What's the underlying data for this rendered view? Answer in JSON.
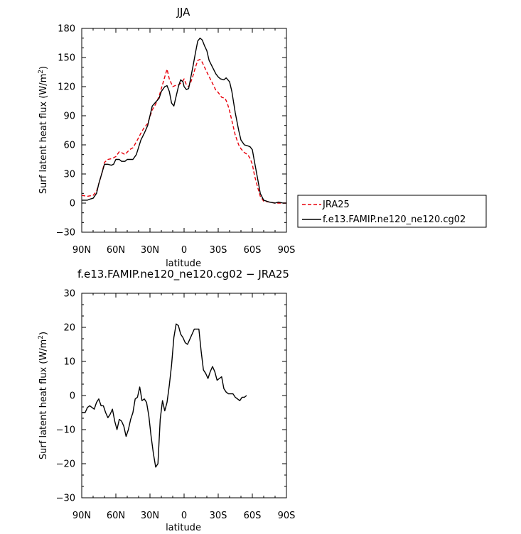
{
  "chart_data": [
    {
      "type": "line",
      "title": "JJA",
      "xlabel": "latitude",
      "ylabel": "Surf latent heat flux (W/m²)",
      "ylabel_text": "Surf latent heat flux (W/m",
      "ylabel_sup": "2",
      "ylabel_close": ")",
      "xlim": [
        90,
        -90
      ],
      "ylim": [
        -30,
        180
      ],
      "xticks": [
        90,
        60,
        30,
        0,
        -30,
        -60,
        -90
      ],
      "xtick_labels": [
        "90N",
        "60N",
        "30N",
        "0",
        "30S",
        "60S",
        "90S"
      ],
      "yticks": [
        -30,
        0,
        30,
        60,
        90,
        120,
        150,
        180
      ],
      "ytick_labels": [
        "−30",
        "0",
        "30",
        "60",
        "90",
        "120",
        "150",
        "180"
      ],
      "grid": false,
      "legend_position": "right",
      "series": [
        {
          "name": "JRA25",
          "style": "dashed",
          "color": "#e8000b",
          "points": [
            [
              90,
              8
            ],
            [
              85,
              7
            ],
            [
              80,
              8
            ],
            [
              77,
              12
            ],
            [
              75,
              20
            ],
            [
              72,
              32
            ],
            [
              70,
              42
            ],
            [
              67,
              45
            ],
            [
              63,
              46
            ],
            [
              60,
              48
            ],
            [
              57,
              53
            ],
            [
              55,
              52
            ],
            [
              52,
              50
            ],
            [
              48,
              55
            ],
            [
              45,
              57
            ],
            [
              42,
              63
            ],
            [
              38,
              72
            ],
            [
              35,
              78
            ],
            [
              32,
              82
            ],
            [
              28,
              96
            ],
            [
              25,
              102
            ],
            [
              22,
              110
            ],
            [
              20,
              118
            ],
            [
              17,
              130
            ],
            [
              15,
              138
            ],
            [
              13,
              128
            ],
            [
              10,
              120
            ],
            [
              8,
              121
            ],
            [
              5,
              122
            ],
            [
              2,
              124
            ],
            [
              0,
              128
            ],
            [
              -2,
              122
            ],
            [
              -4,
              120
            ],
            [
              -6,
              125
            ],
            [
              -8,
              132
            ],
            [
              -10,
              140
            ],
            [
              -12,
              147
            ],
            [
              -14,
              148
            ],
            [
              -16,
              145
            ],
            [
              -18,
              140
            ],
            [
              -20,
              135
            ],
            [
              -23,
              128
            ],
            [
              -26,
              121
            ],
            [
              -28,
              116
            ],
            [
              -30,
              114
            ],
            [
              -33,
              109
            ],
            [
              -36,
              108
            ],
            [
              -38,
              103
            ],
            [
              -40,
              95
            ],
            [
              -42,
              85
            ],
            [
              -45,
              70
            ],
            [
              -48,
              60
            ],
            [
              -50,
              56
            ],
            [
              -53,
              52
            ],
            [
              -56,
              50
            ],
            [
              -58,
              46
            ],
            [
              -60,
              40
            ],
            [
              -62,
              28
            ],
            [
              -65,
              15
            ],
            [
              -67,
              7
            ],
            [
              -70,
              2
            ],
            [
              -75,
              1
            ],
            [
              -80,
              0
            ],
            [
              -85,
              0
            ],
            [
              -90,
              0
            ]
          ]
        },
        {
          "name": "f.e13.FAMIP.ne120_ne120.cg02",
          "style": "solid",
          "color": "#000000",
          "points": [
            [
              90,
              3
            ],
            [
              85,
              3
            ],
            [
              83,
              4
            ],
            [
              80,
              5
            ],
            [
              77,
              10
            ],
            [
              75,
              20
            ],
            [
              72,
              32
            ],
            [
              70,
              40
            ],
            [
              67,
              40
            ],
            [
              64,
              39
            ],
            [
              62,
              40
            ],
            [
              60,
              45
            ],
            [
              57,
              45
            ],
            [
              55,
              43
            ],
            [
              52,
              43
            ],
            [
              50,
              45
            ],
            [
              48,
              45
            ],
            [
              45,
              45
            ],
            [
              42,
              50
            ],
            [
              38,
              65
            ],
            [
              35,
              72
            ],
            [
              32,
              80
            ],
            [
              28,
              100
            ],
            [
              25,
              104
            ],
            [
              22,
              108
            ],
            [
              20,
              115
            ],
            [
              17,
              120
            ],
            [
              15,
              121
            ],
            [
              13,
              115
            ],
            [
              11,
              103
            ],
            [
              9,
              100
            ],
            [
              7,
              110
            ],
            [
              5,
              120
            ],
            [
              3,
              127
            ],
            [
              1,
              125
            ],
            [
              0,
              120
            ],
            [
              -2,
              117
            ],
            [
              -4,
              118
            ],
            [
              -6,
              130
            ],
            [
              -8,
              142
            ],
            [
              -10,
              155
            ],
            [
              -12,
              167
            ],
            [
              -14,
              170
            ],
            [
              -16,
              168
            ],
            [
              -18,
              162
            ],
            [
              -20,
              157
            ],
            [
              -22,
              147
            ],
            [
              -25,
              140
            ],
            [
              -28,
              133
            ],
            [
              -30,
              130
            ],
            [
              -32,
              128
            ],
            [
              -35,
              127
            ],
            [
              -37,
              129
            ],
            [
              -40,
              125
            ],
            [
              -42,
              115
            ],
            [
              -45,
              93
            ],
            [
              -48,
              75
            ],
            [
              -50,
              65
            ],
            [
              -53,
              60
            ],
            [
              -56,
              59
            ],
            [
              -58,
              58
            ],
            [
              -60,
              55
            ],
            [
              -62,
              42
            ],
            [
              -65,
              23
            ],
            [
              -67,
              10
            ],
            [
              -70,
              3
            ],
            [
              -75,
              1
            ],
            [
              -80,
              0
            ],
            [
              -83,
              1
            ],
            [
              -87,
              0
            ],
            [
              -90,
              0
            ]
          ]
        }
      ]
    },
    {
      "type": "line",
      "title": "f.e13.FAMIP.ne120_ne120.cg02 − JRA25",
      "xlabel": "latitude",
      "ylabel": "Surf latent heat flux (W/m²)",
      "ylabel_text": "Surf latent heat flux (W/m",
      "ylabel_sup": "2",
      "ylabel_close": ")",
      "xlim": [
        90,
        -90
      ],
      "ylim": [
        -30,
        30
      ],
      "xticks": [
        90,
        60,
        30,
        0,
        -30,
        -60,
        -90
      ],
      "xtick_labels": [
        "90N",
        "60N",
        "30N",
        "0",
        "30S",
        "60S",
        "90S"
      ],
      "yticks": [
        -30,
        -20,
        -10,
        0,
        10,
        20,
        30
      ],
      "ytick_labels": [
        "−30",
        "−20",
        "−10",
        "0",
        "10",
        "20",
        "30"
      ],
      "grid": false,
      "series": [
        {
          "name": "f.e13.FAMIP.ne120_ne120.cg02 − JRA25",
          "style": "solid",
          "color": "#000000",
          "points": [
            [
              90,
              -5
            ],
            [
              87,
              -5
            ],
            [
              85,
              -3.5
            ],
            [
              83,
              -3
            ],
            [
              81,
              -3.5
            ],
            [
              79,
              -4
            ],
            [
              77,
              -2
            ],
            [
              75,
              -1
            ],
            [
              73,
              -3
            ],
            [
              71,
              -3
            ],
            [
              69,
              -5
            ],
            [
              67,
              -6.5
            ],
            [
              65,
              -5.5
            ],
            [
              63,
              -4
            ],
            [
              61,
              -7.5
            ],
            [
              59,
              -10
            ],
            [
              57,
              -7
            ],
            [
              55,
              -7.5
            ],
            [
              53,
              -9
            ],
            [
              51,
              -12
            ],
            [
              49,
              -10
            ],
            [
              47,
              -7
            ],
            [
              45,
              -5
            ],
            [
              43,
              -1
            ],
            [
              41,
              -0.5
            ],
            [
              39,
              2.5
            ],
            [
              37,
              -1.5
            ],
            [
              35,
              -1
            ],
            [
              33,
              -2
            ],
            [
              31,
              -6
            ],
            [
              29,
              -12
            ],
            [
              27,
              -17
            ],
            [
              25,
              -21
            ],
            [
              23,
              -20
            ],
            [
              21,
              -7
            ],
            [
              19,
              -1.5
            ],
            [
              17,
              -4.5
            ],
            [
              15,
              -2
            ],
            [
              13,
              3
            ],
            [
              11,
              9
            ],
            [
              9,
              17
            ],
            [
              7,
              21
            ],
            [
              5,
              20.5
            ],
            [
              3,
              18
            ],
            [
              1,
              17
            ],
            [
              -1,
              15.5
            ],
            [
              -3,
              15
            ],
            [
              -5,
              16.5
            ],
            [
              -7,
              18
            ],
            [
              -9,
              19.5
            ],
            [
              -11,
              19.5
            ],
            [
              -13,
              19.5
            ],
            [
              -15,
              13
            ],
            [
              -17,
              7.5
            ],
            [
              -19,
              6.5
            ],
            [
              -21,
              5
            ],
            [
              -23,
              7
            ],
            [
              -25,
              8.5
            ],
            [
              -27,
              7
            ],
            [
              -29,
              4.5
            ],
            [
              -31,
              5
            ],
            [
              -33,
              5.5
            ],
            [
              -35,
              2
            ],
            [
              -37,
              1
            ],
            [
              -39,
              0.5
            ],
            [
              -41,
              0.5
            ],
            [
              -43,
              0.5
            ],
            [
              -45,
              -0.5
            ],
            [
              -47,
              -1
            ],
            [
              -49,
              -1.5
            ],
            [
              -51,
              -0.5
            ],
            [
              -53,
              -0.5
            ],
            [
              -55,
              0
            ]
          ]
        }
      ]
    }
  ]
}
